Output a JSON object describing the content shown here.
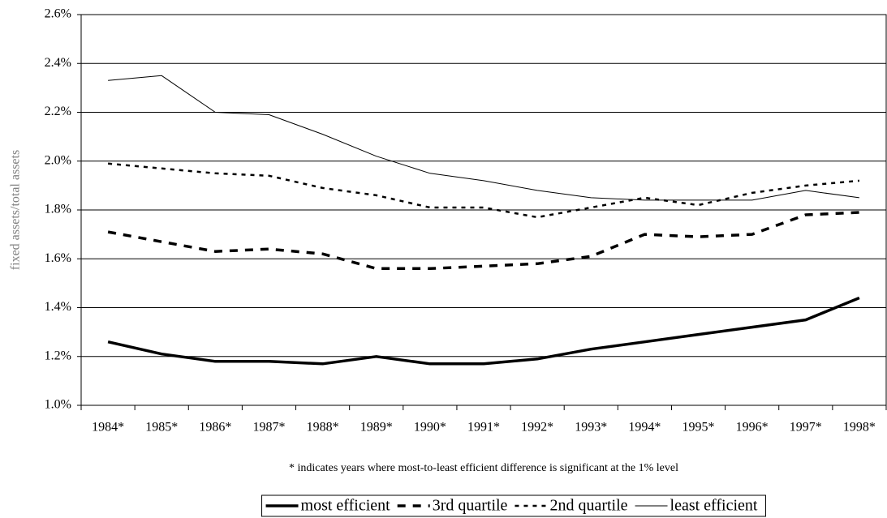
{
  "chart_data": {
    "type": "line",
    "y_label": "fixed assets/total assets",
    "note": "* indicates years where most-to-least efficient difference is significant at the 1% level",
    "categories": [
      "1984*",
      "1985*",
      "1986*",
      "1987*",
      "1988*",
      "1989*",
      "1990*",
      "1991*",
      "1992*",
      "1993*",
      "1994*",
      "1995*",
      "1996*",
      "1997*",
      "1998*"
    ],
    "ylim": [
      1.0,
      2.6
    ],
    "yticks": [
      {
        "value": 1.0,
        "label": "1.0%"
      },
      {
        "value": 1.2,
        "label": "1.2%"
      },
      {
        "value": 1.4,
        "label": "1.4%"
      },
      {
        "value": 1.6,
        "label": "1.6%"
      },
      {
        "value": 1.8,
        "label": "1.8%"
      },
      {
        "value": 2.0,
        "label": "2.0%"
      },
      {
        "value": 2.2,
        "label": "2.2%"
      },
      {
        "value": 2.4,
        "label": "2.4%"
      },
      {
        "value": 2.6,
        "label": "2.6%"
      }
    ],
    "grid": true,
    "legend": "bottom",
    "series": [
      {
        "name": "most efficient",
        "color": "#000000",
        "style": "thick",
        "values": [
          1.26,
          1.21,
          1.18,
          1.18,
          1.17,
          1.2,
          1.17,
          1.17,
          1.19,
          1.23,
          1.26,
          1.29,
          1.32,
          1.35,
          1.44
        ]
      },
      {
        "name": "3rd quartile",
        "color": "#000000",
        "style": "dashed",
        "values": [
          1.71,
          1.67,
          1.63,
          1.64,
          1.62,
          1.56,
          1.56,
          1.57,
          1.58,
          1.61,
          1.7,
          1.69,
          1.7,
          1.78,
          1.79
        ]
      },
      {
        "name": "2nd quartile",
        "color": "#000000",
        "style": "dotted",
        "values": [
          1.99,
          1.97,
          1.95,
          1.94,
          1.89,
          1.86,
          1.81,
          1.81,
          1.77,
          1.81,
          1.85,
          1.82,
          1.87,
          1.9,
          1.92
        ]
      },
      {
        "name": "least efficient",
        "color": "#000000",
        "style": "thin",
        "values": [
          2.33,
          2.35,
          2.2,
          2.19,
          2.11,
          2.02,
          1.95,
          1.92,
          1.88,
          1.85,
          1.84,
          1.84,
          1.84,
          1.88,
          1.85
        ]
      }
    ]
  }
}
